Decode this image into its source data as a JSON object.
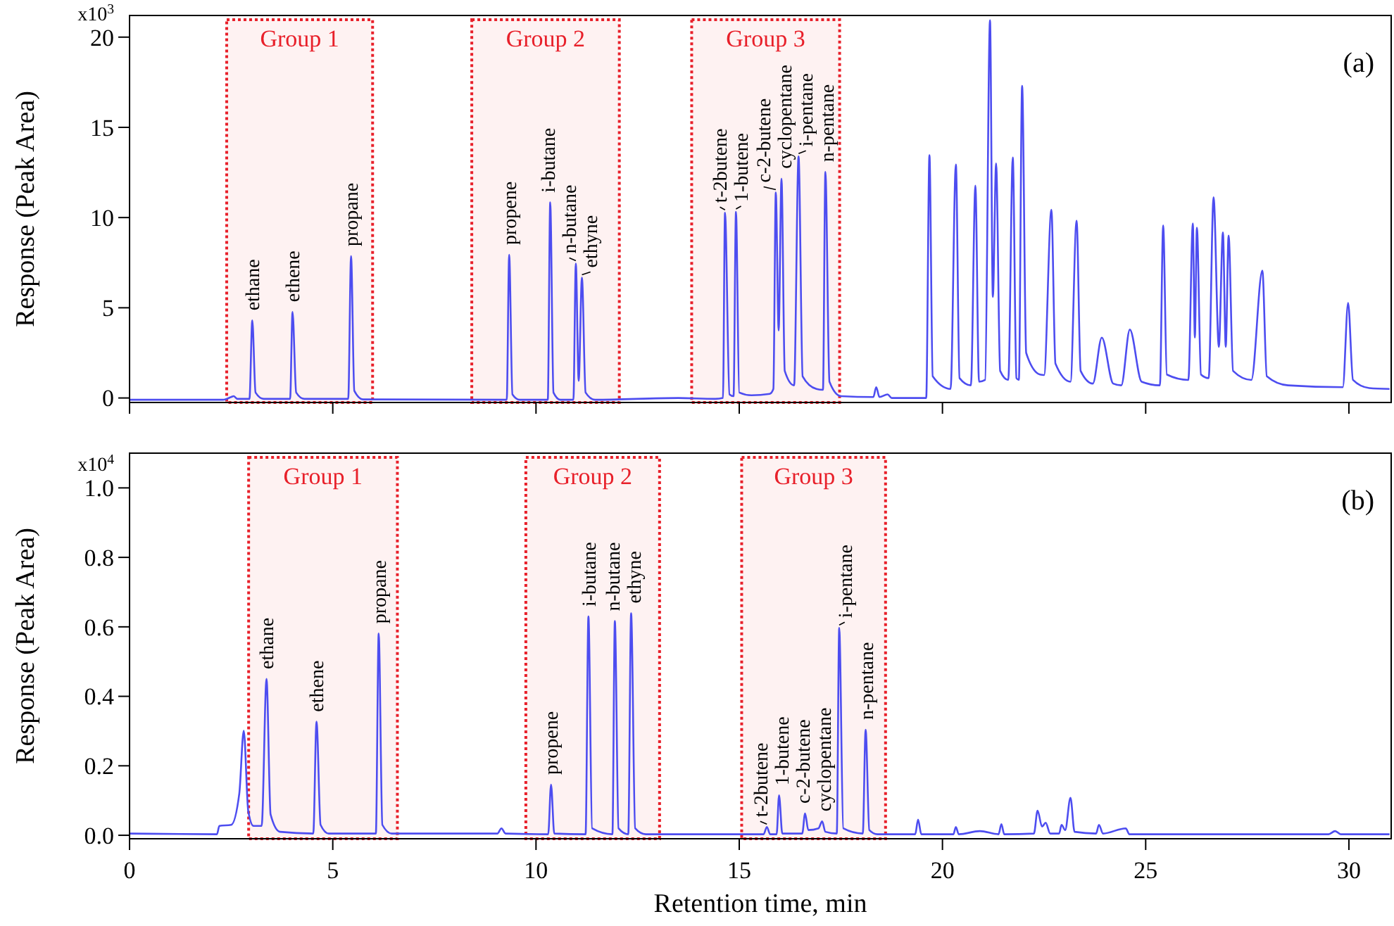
{
  "chart_data": [
    {
      "type": "line",
      "ylabel": "Response (Peak Area)",
      "xlim": [
        0,
        31.04
      ],
      "xticks": [
        0,
        5,
        10,
        15,
        20,
        25,
        30
      ],
      "ylim": [
        -0.25,
        21.2
      ],
      "yticks": [
        0,
        5,
        10,
        15,
        20
      ],
      "tick_labels": "y",
      "grid": false,
      "series": [
        {
          "color": "#4d4df0",
          "x": [
            0,
            2.3,
            2.5,
            2.56,
            2.65,
            2.95,
            3.02,
            3.1,
            3.3,
            3.95,
            4.01,
            4.1,
            4.3,
            5.38,
            5.45,
            5.53,
            5.75,
            9.28,
            9.34,
            9.42,
            9.6,
            10.29,
            10.35,
            10.43,
            10.6,
            10.92,
            10.98,
            11.05,
            11.13,
            11.22,
            11.45,
            13.5,
            14.4,
            14.6,
            14.65,
            14.76,
            14.86,
            14.92,
            15.0,
            15.3,
            15.75,
            15.84,
            15.9,
            15.97,
            16.04,
            16.12,
            16.35,
            16.46,
            16.56,
            16.9,
            17.06,
            17.12,
            17.22,
            17.5,
            18.3,
            18.37,
            18.45,
            18.65,
            18.75,
            19.6,
            19.68,
            19.76,
            20.2,
            20.33,
            20.42,
            20.7,
            20.81,
            20.9,
            21.05,
            21.17,
            21.24,
            21.32,
            21.42,
            21.62,
            21.73,
            21.82,
            21.88,
            21.96,
            22.06,
            22.4,
            22.5,
            22.68,
            22.78,
            23.15,
            23.3,
            23.4,
            23.7,
            23.92,
            24.2,
            24.4,
            24.61,
            24.9,
            25.35,
            25.43,
            25.52,
            26.05,
            26.16,
            26.21,
            26.26,
            26.36,
            26.55,
            26.67,
            26.8,
            26.9,
            26.97,
            27.04,
            27.15,
            27.6,
            27.87,
            27.98,
            28.5,
            29.85,
            29.98,
            30.1,
            30.5,
            31.0
          ],
          "values": [
            -0.1,
            -0.1,
            0.05,
            0.1,
            -0.05,
            -0.05,
            4.3,
            0.3,
            -0.05,
            -0.05,
            4.77,
            0.3,
            -0.05,
            -0.05,
            7.86,
            0.4,
            -0.08,
            -0.1,
            7.94,
            0.2,
            -0.1,
            -0.1,
            10.84,
            0.3,
            -0.1,
            -0.1,
            7.45,
            0.95,
            6.67,
            0.3,
            -0.1,
            0,
            -0.05,
            0,
            10.27,
            0.2,
            0.1,
            10.32,
            0.3,
            0.15,
            0.23,
            0.5,
            11.39,
            3.74,
            12.16,
            1.5,
            0.7,
            13.39,
            1.2,
            0.5,
            0.45,
            12.53,
            0.9,
            0.1,
            0.05,
            0.6,
            0.05,
            0.2,
            0,
            0,
            13.46,
            1.2,
            0.5,
            12.94,
            1.1,
            0.7,
            11.77,
            0.9,
            1.0,
            20.93,
            5.6,
            13.0,
            1.5,
            1.0,
            13.33,
            1.1,
            1.0,
            17.3,
            2.5,
            1.3,
            1.27,
            10.43,
            1.9,
            0.9,
            9.83,
            1.5,
            0.8,
            3.35,
            0.8,
            0.7,
            3.79,
            0.9,
            0.7,
            9.57,
            1.3,
            1.0,
            9.67,
            3.35,
            9.44,
            1.3,
            1.1,
            11.13,
            2.83,
            9.18,
            2.83,
            9.0,
            1.5,
            1.0,
            7.06,
            1.2,
            0.7,
            0.6,
            5.27,
            1.0,
            0.55,
            0.5
          ]
        }
      ],
      "bands": [
        {
          "axis": "x",
          "from": 2.39,
          "to": 5.98,
          "label": "Group 1",
          "color": "#e8202a"
        },
        {
          "axis": "x",
          "from": 8.42,
          "to": 12.05,
          "label": "Group 2",
          "color": "#e8202a"
        },
        {
          "axis": "x",
          "from": 13.83,
          "to": 17.47,
          "label": "Group 3",
          "color": "#e8202a"
        }
      ],
      "annotations": [
        "(a)",
        "x10$^{3}$",
        {
          "text": "ethane",
          "x": 3.02,
          "y": 4.3
        },
        {
          "text": "ethene",
          "x": 4.01,
          "y": 4.77
        },
        {
          "text": "propane",
          "x": 5.45,
          "y": 7.86
        },
        {
          "text": "propene",
          "x": 9.34,
          "y": 7.94
        },
        {
          "text": "i-butane",
          "x": 10.35,
          "y": 10.84
        },
        {
          "text": "n-butane",
          "x": 10.98,
          "y": 7.45
        },
        {
          "text": "ethyne",
          "x": 11.13,
          "y": 6.67
        },
        {
          "text": "t-2butene",
          "x": 14.65,
          "y": 10.27
        },
        {
          "text": "1-butene",
          "x": 14.92,
          "y": 10.32
        },
        {
          "text": "c-2-butene",
          "x": 15.9,
          "y": 11.39
        },
        {
          "text": "cyclopentane",
          "x": 16.04,
          "y": 12.16
        },
        {
          "text": "i-pentane",
          "x": 16.46,
          "y": 13.39
        },
        {
          "text": "n-pentane",
          "x": 17.12,
          "y": 12.53
        }
      ]
    },
    {
      "type": "line",
      "ylabel": "Response (Peak Area)",
      "xlabel": "Retention time, min",
      "xlim": [
        0,
        31.04
      ],
      "xticks": [
        0,
        5,
        10,
        15,
        20,
        25,
        30
      ],
      "ylim": [
        -0.01,
        1.1
      ],
      "yticks": [
        {
          "value": 0,
          "label": "0.0"
        },
        0.2,
        0.4,
        0.6,
        0.8,
        {
          "value": 1,
          "label": "1.0"
        }
      ],
      "grid": false,
      "series": [
        {
          "color": "#4d4df0",
          "x": [
            0,
            2.15,
            2.21,
            2.5,
            2.7,
            2.81,
            2.92,
            3.05,
            3.25,
            3.37,
            3.47,
            3.7,
            4.52,
            4.6,
            4.7,
            4.9,
            6.06,
            6.13,
            6.22,
            6.45,
            9.05,
            9.15,
            9.25,
            10.3,
            10.37,
            10.45,
            11.22,
            11.29,
            11.38,
            11.88,
            11.94,
            12.03,
            12.27,
            12.34,
            12.44,
            12.7,
            15.6,
            15.68,
            15.76,
            15.92,
            15.98,
            16.06,
            16.55,
            16.62,
            16.7,
            16.95,
            17.04,
            17.12,
            17.4,
            17.46,
            17.56,
            18.04,
            18.11,
            18.2,
            18.4,
            19.33,
            19.4,
            19.48,
            20.27,
            20.33,
            20.4,
            20.92,
            21.38,
            21.45,
            21.52,
            22.25,
            22.34,
            22.45,
            22.54,
            22.65,
            22.87,
            22.93,
            23.02,
            23.15,
            23.25,
            23.78,
            23.85,
            23.95,
            24.51,
            24.6,
            29.5,
            29.66,
            29.8,
            31.0
          ],
          "values": [
            0.005,
            0.003,
            0.027,
            0.03,
            0.12,
            0.301,
            0.07,
            0.027,
            0.027,
            0.45,
            0.06,
            0.01,
            0.005,
            0.327,
            0.03,
            0.005,
            0.005,
            0.581,
            0.03,
            0.005,
            0.005,
            0.02,
            0.005,
            0.003,
            0.146,
            0.005,
            0.003,
            0.63,
            0.02,
            0.003,
            0.617,
            0.02,
            0.003,
            0.639,
            0.02,
            0.003,
            0.003,
            0.024,
            0.003,
            0.003,
            0.115,
            0.005,
            0.005,
            0.063,
            0.015,
            0.02,
            0.04,
            0.01,
            0.005,
            0.597,
            0.02,
            0.005,
            0.304,
            0.015,
            0.003,
            0.003,
            0.045,
            0.003,
            0.003,
            0.024,
            0.003,
            0.012,
            0.003,
            0.032,
            0.003,
            0.005,
            0.071,
            0.025,
            0.036,
            0.005,
            0.005,
            0.03,
            0.015,
            0.108,
            0.01,
            0.005,
            0.03,
            0.005,
            0.02,
            0.003,
            0.003,
            0.012,
            0.003,
            0.003
          ]
        }
      ],
      "bands": [
        {
          "axis": "x",
          "from": 2.93,
          "to": 6.59,
          "label": "Group 1",
          "color": "#e8202a"
        },
        {
          "axis": "x",
          "from": 9.75,
          "to": 13.04,
          "label": "Group 2",
          "color": "#e8202a"
        },
        {
          "axis": "x",
          "from": 15.06,
          "to": 18.6,
          "label": "Group 3",
          "color": "#e8202a"
        }
      ],
      "annotations": [
        "(b)",
        "x10$^{4}$",
        {
          "text": "ethane",
          "x": 3.37,
          "y": 0.45
        },
        {
          "text": "ethene",
          "x": 4.6,
          "y": 0.327
        },
        {
          "text": "propane",
          "x": 6.13,
          "y": 0.581
        },
        {
          "text": "propene",
          "x": 10.37,
          "y": 0.146
        },
        {
          "text": "i-butane",
          "x": 11.29,
          "y": 0.63
        },
        {
          "text": "n-butane",
          "x": 11.94,
          "y": 0.617
        },
        {
          "text": "ethyne",
          "x": 12.34,
          "y": 0.639
        },
        {
          "text": "t-2butene",
          "x": 15.68,
          "y": 0.024
        },
        {
          "text": "1-butene",
          "x": 15.98,
          "y": 0.115
        },
        {
          "text": "c-2-butene",
          "x": 16.62,
          "y": 0.063
        },
        {
          "text": "cyclopentane",
          "x": 17.04,
          "y": 0.04
        },
        {
          "text": "i-pentane",
          "x": 17.46,
          "y": 0.597
        },
        {
          "text": "n-pentane",
          "x": 18.11,
          "y": 0.304
        }
      ]
    }
  ]
}
